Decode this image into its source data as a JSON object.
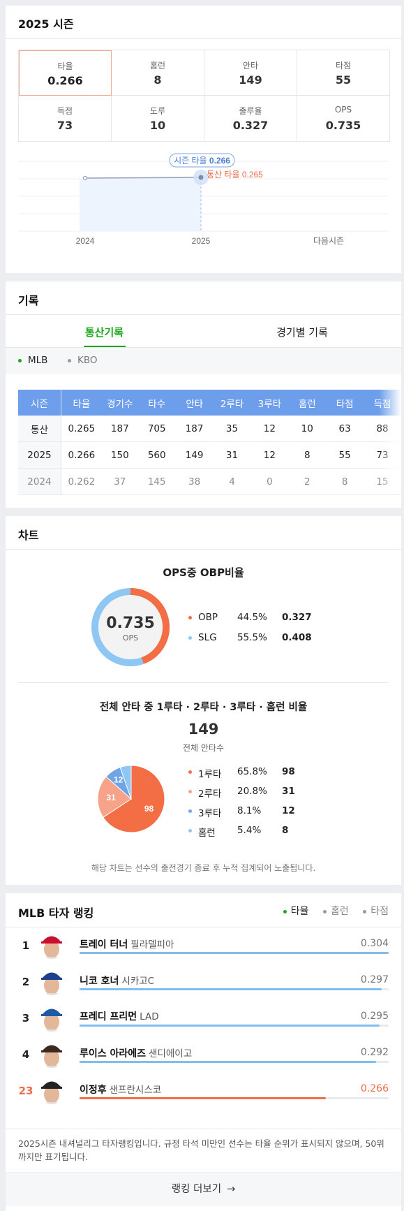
{
  "season": {
    "title": "2025 시즌",
    "stats": [
      {
        "label": "타율",
        "value": "0.266"
      },
      {
        "label": "홈런",
        "value": "8"
      },
      {
        "label": "안타",
        "value": "149"
      },
      {
        "label": "타점",
        "value": "55"
      },
      {
        "label": "득점",
        "value": "73"
      },
      {
        "label": "도루",
        "value": "10"
      },
      {
        "label": "출루율",
        "value": "0.327"
      },
      {
        "label": "OPS",
        "value": "0.735"
      }
    ],
    "chart": {
      "tooltip_label": "시즌 타율",
      "tooltip_value": "0.266",
      "career_label": "통산 타율 0.265",
      "x_labels": [
        "2024",
        "2025",
        "다음시즌"
      ],
      "accent": "#4a7fd4",
      "career_color": "#f06b4b"
    }
  },
  "records": {
    "title": "기록",
    "tabs": [
      "통산기록",
      "경기별 기록"
    ],
    "leagues": [
      "MLB",
      "KBO"
    ],
    "headers": [
      "시즌",
      "타율",
      "경기수",
      "타수",
      "안타",
      "2루타",
      "3루타",
      "홈런",
      "타점",
      "득점"
    ],
    "rows": [
      [
        "통산",
        "0.265",
        "187",
        "705",
        "187",
        "35",
        "12",
        "10",
        "63",
        "88"
      ],
      [
        "2025",
        "0.266",
        "150",
        "560",
        "149",
        "31",
        "12",
        "8",
        "55",
        "73"
      ],
      [
        "2024",
        "0.262",
        "37",
        "145",
        "38",
        "4",
        "0",
        "2",
        "8",
        "15"
      ]
    ]
  },
  "charts": {
    "title": "차트",
    "ops": {
      "title": "OPS중 OBP비율",
      "center_value": "0.735",
      "center_label": "OPS",
      "legend": [
        {
          "name": "OBP",
          "pct": "44.5%",
          "value": "0.327",
          "color": "#f36d45"
        },
        {
          "name": "SLG",
          "pct": "55.5%",
          "value": "0.408",
          "color": "#8ec6f4"
        }
      ]
    },
    "hits": {
      "title": "전체 안타 중 1루타 · 2루타 · 3루타 · 홈런 비율",
      "total": "149",
      "total_label": "전체 안타수",
      "legend": [
        {
          "name": "1루타",
          "pct": "65.8%",
          "value": "98",
          "color": "#f36d45"
        },
        {
          "name": "2루타",
          "pct": "20.8%",
          "value": "31",
          "color": "#f7a389"
        },
        {
          "name": "3루타",
          "pct": "8.1%",
          "value": "12",
          "color": "#6fa5e6"
        },
        {
          "name": "홈런",
          "pct": "5.4%",
          "value": "8",
          "color": "#8ec6f4"
        }
      ]
    },
    "note": "해당 차트는 선수의 출전경기 종료 후 누적 집계되어 노출됩니다."
  },
  "chart_data": [
    {
      "type": "line",
      "x": [
        "2024",
        "2025",
        "다음시즌"
      ],
      "series": [
        {
          "values": [
            0.262,
            0.266,
            null
          ]
        }
      ],
      "annotations": [
        "시즌 타율 0.266",
        "통산 타율 0.265"
      ]
    },
    {
      "type": "pie",
      "title": "OPS중 OBP비율",
      "categories": [
        "OBP",
        "SLG"
      ],
      "values": [
        0.327,
        0.408
      ]
    },
    {
      "type": "pie",
      "title": "전체 안타 중 1루타 · 2루타 · 3루타 · 홈런 비율",
      "categories": [
        "1루타",
        "2루타",
        "3루타",
        "홈런"
      ],
      "values": [
        98,
        31,
        12,
        8
      ]
    }
  ],
  "ranking": {
    "title": "MLB 타자 랭킹",
    "filters": [
      "타율",
      "홈런",
      "타점"
    ],
    "players": [
      {
        "rank": "1",
        "name": "트레이 터너",
        "team": "필라델피아",
        "value": "0.304",
        "cap": "#c8102e",
        "level": 1.0
      },
      {
        "rank": "2",
        "name": "니코 호너",
        "team": "시카고C",
        "value": "0.297",
        "cap": "#1e3f8c",
        "level": 0.977
      },
      {
        "rank": "3",
        "name": "프레디 프리먼",
        "team": "LAD",
        "value": "0.295",
        "cap": "#1e5aa8",
        "level": 0.97
      },
      {
        "rank": "4",
        "name": "루이스 아라에즈",
        "team": "샌디에이고",
        "value": "0.292",
        "cap": "#3d2a1e",
        "level": 0.96
      },
      {
        "rank": "23",
        "name": "이정후",
        "team": "샌프란시스코",
        "value": "0.266",
        "cap": "#222222",
        "level": 0.796
      }
    ],
    "note": "2025시즌 내셔널리그 타자랭킹입니다. 규정 타석 미만인 선수는 타율 순위가 표시되지 않으며, 50위까지만 표기됩니다.",
    "more": "랭킹 더보기"
  }
}
